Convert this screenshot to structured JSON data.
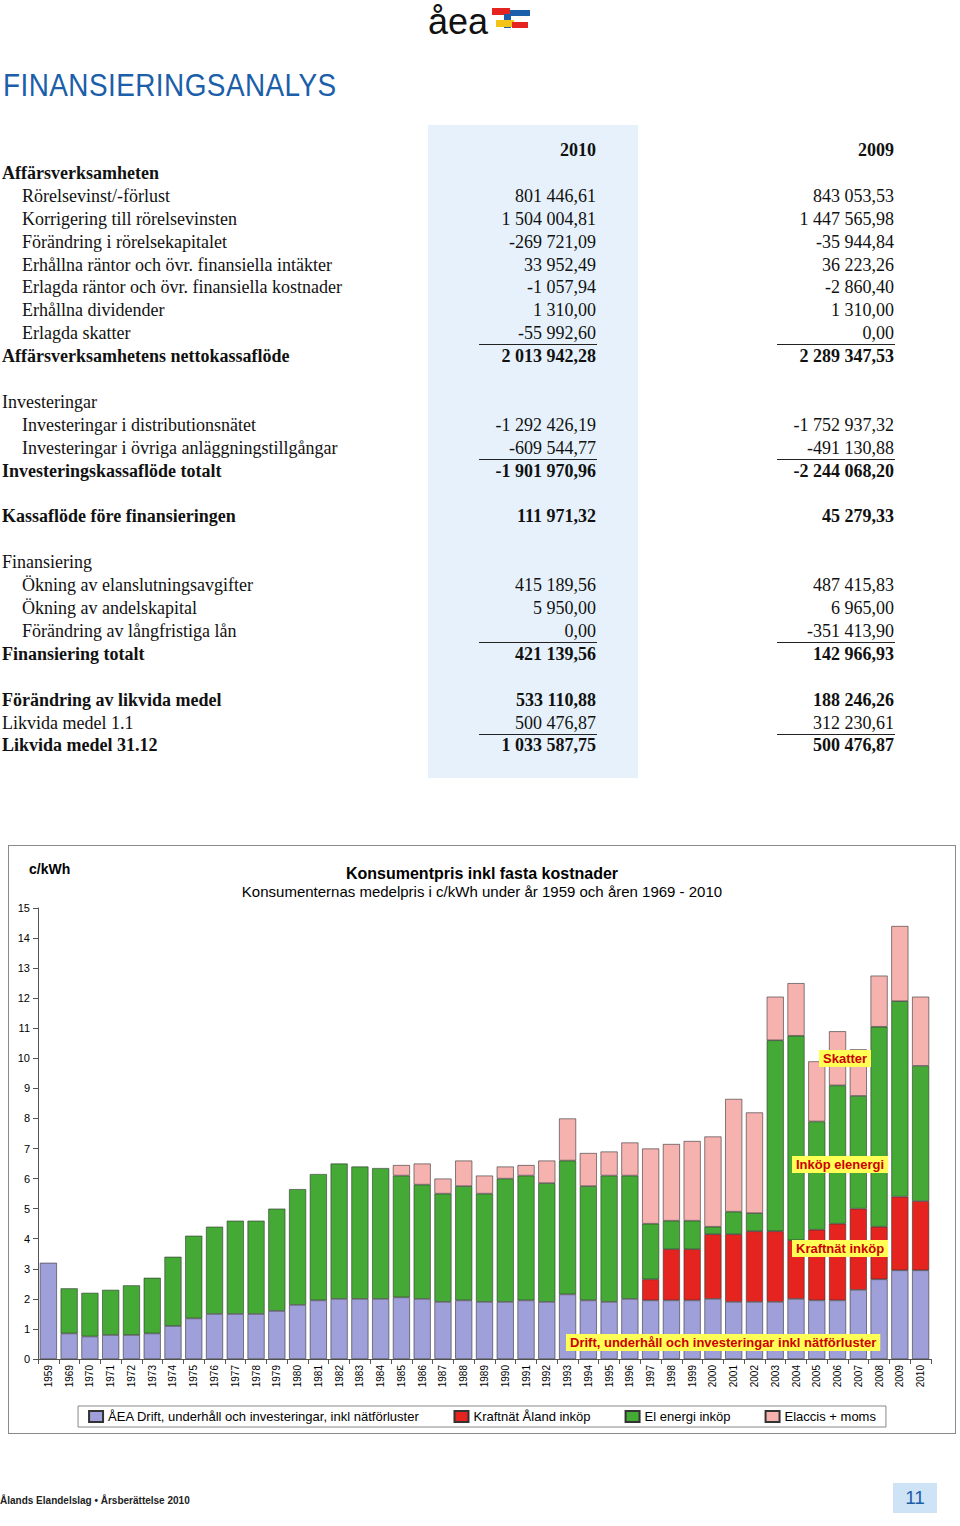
{
  "header": {
    "logo": "åea",
    "title": "FINANSIERINGSANALYS"
  },
  "table": {
    "columns": [
      "2010",
      "2009"
    ],
    "blocks": [
      [
        {
          "label": "Affärsverksamheten",
          "bold": true
        },
        {
          "label": "Rörelsevinst/-förlust",
          "indent": true,
          "values": [
            "801 446,61",
            "843 053,53"
          ]
        },
        {
          "label": "Korrigering till rörelsevinsten",
          "indent": true,
          "values": [
            "1 504 004,81",
            "1 447 565,98"
          ]
        },
        {
          "label": "Förändring i rörelsekapitalet",
          "indent": true,
          "values": [
            "-269 721,09",
            "-35 944,84"
          ]
        },
        {
          "label": "Erhållna räntor och övr. finansiella intäkter",
          "indent": true,
          "values": [
            "33 952,49",
            "36 223,26"
          ]
        },
        {
          "label": "Erlagda räntor och övr. finansiella kostnader",
          "indent": true,
          "values": [
            "-1 057,94",
            "-2 860,40"
          ]
        },
        {
          "label": "Erhållna dividender",
          "indent": true,
          "values": [
            "1 310,00",
            "1 310,00"
          ]
        },
        {
          "label": "Erlagda skatter",
          "indent": true,
          "rule": true,
          "values": [
            "-55 992,60",
            "0,00"
          ]
        },
        {
          "label": "Affärsverksamhetens nettokassaflöde",
          "bold": true,
          "values": [
            "2 013 942,28",
            "2 289 347,53"
          ]
        }
      ],
      [
        {
          "label": "Investeringar"
        },
        {
          "label": "Investeringar i distributionsnätet",
          "indent": true,
          "values": [
            "-1 292 426,19",
            "-1 752 937,32"
          ]
        },
        {
          "label": "Investeringar i övriga anläggningstillgångar",
          "indent": true,
          "rule": true,
          "values": [
            "-609 544,77",
            "-491 130,88"
          ]
        },
        {
          "label": "Investeringskassaflöde totalt",
          "bold": true,
          "values": [
            "-1 901 970,96",
            "-2 244 068,20"
          ]
        }
      ],
      [
        {
          "label": "Kassaflöde före finansieringen",
          "bold": true,
          "values": [
            "111 971,32",
            "45 279,33"
          ]
        }
      ],
      [
        {
          "label": "Finansiering"
        },
        {
          "label": "Ökning av elanslutningsavgifter",
          "indent": true,
          "values": [
            "415 189,56",
            "487 415,83"
          ]
        },
        {
          "label": "Ökning av andelskapital",
          "indent": true,
          "values": [
            "5 950,00",
            "6 965,00"
          ]
        },
        {
          "label": "Förändring av långfristiga lån",
          "indent": true,
          "rule": true,
          "values": [
            "0,00",
            "-351 413,90"
          ]
        },
        {
          "label": "Finansiering totalt",
          "bold": true,
          "values": [
            "421 139,56",
            "142 966,93"
          ]
        }
      ],
      [
        {
          "label": "Förändring av likvida medel",
          "bold": true,
          "values": [
            "533 110,88",
            "188 246,26"
          ]
        },
        {
          "label": "Likvida medel 1.1",
          "rule": true,
          "values": [
            "500 476,87",
            "312 230,61"
          ]
        },
        {
          "label": "Likvida medel 31.12",
          "bold": true,
          "values": [
            "1 033 587,75",
            "500 476,87"
          ]
        }
      ]
    ]
  },
  "chart_data": {
    "type": "bar",
    "title": "Konsumentpris inkl fasta kostnader",
    "subtitle": "Konsumenternas medelpris i c/kWh under år 1959 och åren 1969 - 2010",
    "ylabel": "c/kWh",
    "stacked": true,
    "grid": false,
    "legend": "bottom",
    "categories": [
      "1959",
      "1969",
      "1970",
      "1971",
      "1972",
      "1973",
      "1974",
      "1975",
      "1976",
      "1977",
      "1978",
      "1979",
      "1980",
      "1981",
      "1982",
      "1983",
      "1984",
      "1985",
      "1986",
      "1987",
      "1988",
      "1989",
      "1990",
      "1991",
      "1992",
      "1993",
      "1994",
      "1995",
      "1996",
      "1997",
      "1998",
      "1999",
      "2000",
      "2001",
      "2002",
      "2003",
      "2004",
      "2005",
      "2006",
      "2007",
      "2008",
      "2009",
      "2010"
    ],
    "ylim": [
      0,
      15
    ],
    "yticks": [
      0,
      1,
      2,
      3,
      4,
      5,
      6,
      7,
      8,
      9,
      10,
      11,
      12,
      13,
      14,
      15
    ],
    "series": [
      {
        "name": "ÅEA Drift, underhåll och investeringar, inkl nätförluster",
        "color": "#9f9fd9",
        "values": [
          3.2,
          0.85,
          0.75,
          0.8,
          0.8,
          0.85,
          1.1,
          1.35,
          1.5,
          1.5,
          1.5,
          1.6,
          1.8,
          1.95,
          2.0,
          2.0,
          2.0,
          2.05,
          2.0,
          1.9,
          1.95,
          1.9,
          1.9,
          1.95,
          1.9,
          2.15,
          1.95,
          1.9,
          2.0,
          1.95,
          1.95,
          1.95,
          2.0,
          1.9,
          1.9,
          1.9,
          2.0,
          1.95,
          1.95,
          2.3,
          2.65,
          2.95,
          2.95
        ]
      },
      {
        "name": "Kraftnät Åland inköp",
        "color": "#e5231f",
        "values": [
          null,
          null,
          null,
          null,
          null,
          null,
          null,
          null,
          null,
          null,
          null,
          null,
          null,
          null,
          null,
          null,
          null,
          null,
          null,
          null,
          null,
          null,
          null,
          null,
          null,
          null,
          null,
          null,
          null,
          0.7,
          1.7,
          1.7,
          2.15,
          2.25,
          2.35,
          2.35,
          1.95,
          2.35,
          2.55,
          2.7,
          1.75,
          2.45,
          2.3
        ]
      },
      {
        "name": "El energi inköp",
        "color": "#45a935",
        "values": [
          null,
          1.5,
          1.45,
          1.5,
          1.65,
          1.85,
          2.3,
          2.75,
          2.9,
          3.1,
          3.1,
          3.4,
          3.85,
          4.2,
          4.5,
          4.4,
          4.35,
          4.05,
          3.8,
          3.6,
          3.8,
          3.6,
          4.1,
          4.15,
          3.95,
          4.45,
          3.8,
          4.2,
          4.1,
          1.85,
          0.95,
          0.95,
          0.25,
          0.75,
          0.6,
          6.35,
          6.8,
          3.6,
          4.6,
          3.75,
          6.65,
          6.5,
          4.5
        ]
      },
      {
        "name": "Elaccis + moms",
        "color": "#f6b2af",
        "values": [
          null,
          null,
          null,
          null,
          null,
          null,
          null,
          null,
          null,
          null,
          null,
          null,
          null,
          null,
          null,
          null,
          null,
          0.35,
          0.7,
          0.5,
          0.85,
          0.6,
          0.4,
          0.35,
          0.75,
          1.4,
          1.1,
          0.8,
          1.1,
          2.5,
          2.55,
          2.65,
          3.0,
          3.75,
          3.35,
          1.45,
          1.75,
          2.0,
          1.8,
          1.55,
          1.7,
          2.5,
          2.3
        ]
      }
    ],
    "annotations": [
      "Skatter",
      "Inköp elenergi",
      "Kraftnät inköp",
      "Drift, underhåll och investeringar inkl nätförluster"
    ]
  },
  "footer": {
    "text": "Ålands Elandelslag • Årsberättelse 2010",
    "page": "11"
  }
}
